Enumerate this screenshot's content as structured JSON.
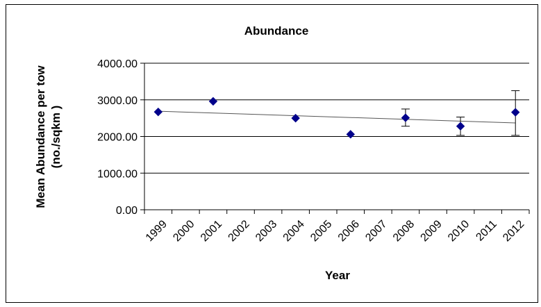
{
  "chart_data": {
    "type": "scatter",
    "title": "Abundance",
    "xlabel": "Year",
    "ylabel_lines": [
      "Mean Abundance  per tow",
      "(no./sqkm )"
    ],
    "categories": [
      "1999",
      "2000",
      "2001",
      "2002",
      "2003",
      "2004",
      "2005",
      "2006",
      "2007",
      "2008",
      "2009",
      "2010",
      "2011",
      "2012"
    ],
    "y_ticks": [
      "0.00",
      "1000.00",
      "2000.00",
      "3000.00",
      "4000.00"
    ],
    "ylim": [
      0,
      4000
    ],
    "grid": "horizontal",
    "series": [
      {
        "marker": "diamond",
        "color": "#00008b",
        "points": [
          {
            "x": "1999",
            "y": 2670
          },
          {
            "x": "2001",
            "y": 2960
          },
          {
            "x": "2004",
            "y": 2500
          },
          {
            "x": "2006",
            "y": 2060
          },
          {
            "x": "2008",
            "y": 2510,
            "err_low": 2280,
            "err_high": 2750
          },
          {
            "x": "2010",
            "y": 2280,
            "err_low": 2030,
            "err_high": 2530
          },
          {
            "x": "2012",
            "y": 2660,
            "err_low": 2030,
            "err_high": 3250
          }
        ]
      }
    ],
    "trendline": {
      "x_start": "1999",
      "y_start": 2690,
      "x_end": "2012",
      "y_end": 2370
    }
  }
}
